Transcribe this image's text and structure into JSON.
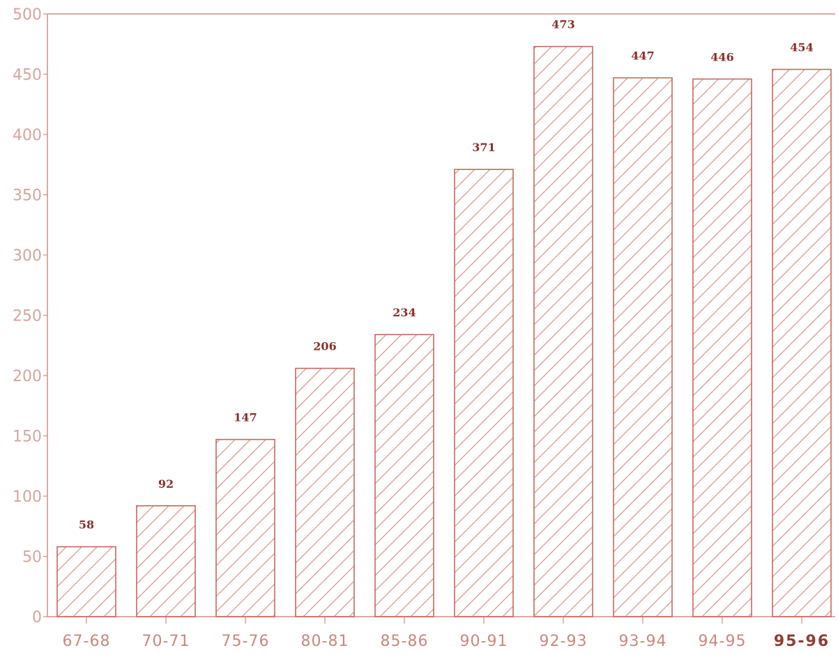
{
  "chart_data": {
    "type": "bar",
    "title": "",
    "xlabel": "",
    "ylabel": "",
    "categories": [
      "67-68",
      "70-71",
      "75-76",
      "80-81",
      "85-86",
      "90-91",
      "92-93",
      "93-94",
      "94-95",
      "95-96"
    ],
    "values": [
      58,
      92,
      147,
      206,
      234,
      371,
      473,
      447,
      446,
      454
    ],
    "data_labels": [
      "58",
      "92",
      "147",
      "206",
      "234",
      "371",
      "473",
      "447",
      "446",
      "454"
    ],
    "ylim": [
      0,
      500
    ],
    "yticks": [
      0,
      50,
      100,
      150,
      200,
      250,
      300,
      350,
      400,
      450,
      500
    ],
    "ytick_labels": [
      "0",
      "50",
      "100",
      "150",
      "200",
      "250",
      "300",
      "350",
      "400",
      "450",
      "500"
    ],
    "grid": false,
    "legend": "none",
    "bar_fill": "diagonal-hatch",
    "colors": {
      "bar_stroke": "#c9675c",
      "hatch": "#d9978e",
      "axis": "#d08f86",
      "tick_label": "#d4a59c",
      "x_label": "#c7897d",
      "x_label_emphasis": "#8f3e36",
      "data_label": "#8b2f2a"
    }
  }
}
